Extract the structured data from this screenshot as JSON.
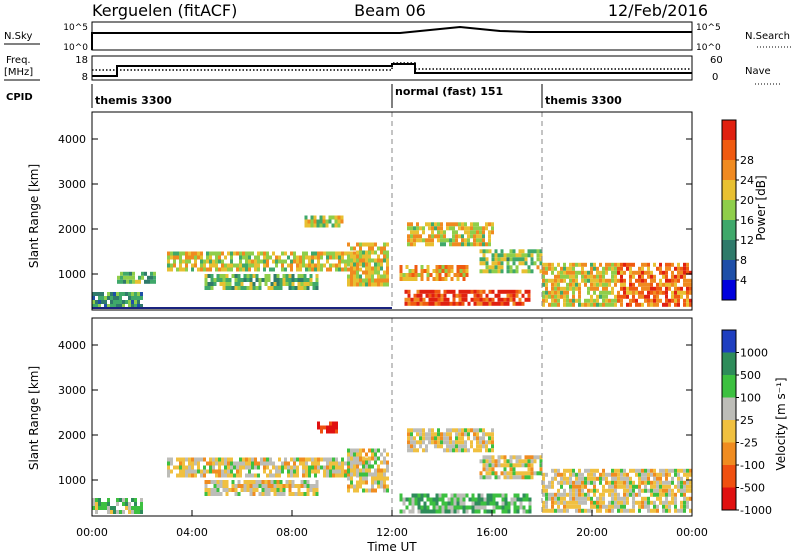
{
  "header": {
    "station": "Kerguelen (fitACF)",
    "beam": "Beam 06",
    "date": "12/Feb/2016"
  },
  "top_panels": {
    "nsky_label": "N.Sky",
    "nsky_ticks": [
      "10^5",
      "10^0"
    ],
    "nsearch_label": "N.Search",
    "nsearch_ticks": [
      "10^5",
      "10^0"
    ],
    "freq_label_1": "Freq.",
    "freq_label_2": "[MHz]",
    "freq_ticks": [
      "18",
      "8"
    ],
    "nave_label": "Nave",
    "nave_ticks": [
      "60",
      "0"
    ],
    "cpid_label": "CPID",
    "cpid_segments": [
      {
        "label": "themis 3300",
        "start_hour": 0
      },
      {
        "label": "normal (fast) 151",
        "start_hour": 12
      },
      {
        "label": "themis 3300",
        "start_hour": 18
      }
    ]
  },
  "chart_data": [
    {
      "type": "heatmap",
      "title": "",
      "ylabel": "Slant Range [km]",
      "xlabel": "",
      "yticks": [
        "1000",
        "2000",
        "3000",
        "4000"
      ],
      "ylim": [
        200,
        4600
      ],
      "xlim": [
        0,
        24
      ],
      "colorbar_label": "Power [dB]",
      "colorbar_ticks": [
        "4",
        "8",
        "12",
        "16",
        "20",
        "24",
        "28"
      ],
      "colorbar_colors": [
        "#0000dd",
        "#1e4fa8",
        "#2f7a6a",
        "#3fa86a",
        "#8fce4a",
        "#e8c032",
        "#f08a20",
        "#f05a10",
        "#e02010"
      ],
      "mode_change_hours": [
        12,
        18
      ],
      "regions": [
        {
          "h0": 0.0,
          "h1": 2.0,
          "r0": 280,
          "r1": 600,
          "level": 0.35
        },
        {
          "h0": 1.0,
          "h1": 2.5,
          "r0": 850,
          "r1": 1050,
          "level": 0.4
        },
        {
          "h0": 3.0,
          "h1": 11.0,
          "r0": 1100,
          "r1": 1500,
          "level": 0.55
        },
        {
          "h0": 4.5,
          "h1": 9.0,
          "r0": 700,
          "r1": 1000,
          "level": 0.45
        },
        {
          "h0": 8.5,
          "h1": 10.0,
          "r0": 2050,
          "r1": 2300,
          "level": 0.55
        },
        {
          "h0": 10.2,
          "h1": 11.8,
          "r0": 800,
          "r1": 1700,
          "level": 0.6
        },
        {
          "h0": 12.3,
          "h1": 15.0,
          "r0": 900,
          "r1": 1200,
          "level": 0.7
        },
        {
          "h0": 12.5,
          "h1": 17.5,
          "r0": 300,
          "r1": 650,
          "level": 0.9
        },
        {
          "h0": 12.6,
          "h1": 16.0,
          "r0": 1650,
          "r1": 2150,
          "level": 0.6
        },
        {
          "h0": 15.5,
          "h1": 18.0,
          "r0": 1050,
          "r1": 1550,
          "level": 0.5
        },
        {
          "h0": 18.0,
          "h1": 21.0,
          "r0": 300,
          "r1": 1250,
          "level": 0.6
        },
        {
          "h0": 21.0,
          "h1": 24.0,
          "r0": 300,
          "r1": 1250,
          "level": 0.8
        }
      ]
    },
    {
      "type": "heatmap",
      "title": "",
      "ylabel": "Slant Range [km]",
      "xlabel": "Time UT",
      "xticks": [
        "00:00",
        "04:00",
        "08:00",
        "12:00",
        "16:00",
        "20:00",
        "00:00"
      ],
      "yticks": [
        "1000",
        "2000",
        "3000",
        "4000"
      ],
      "ylim": [
        200,
        4600
      ],
      "xlim": [
        0,
        24
      ],
      "colorbar_label": "Velocity [m s⁻¹]",
      "colorbar_ticks": [
        "1000",
        "500",
        "100",
        "25",
        "-25",
        "-100",
        "-500",
        "-1000"
      ],
      "colorbar_colors": [
        "#1f3fc0",
        "#2e8c5a",
        "#3cc040",
        "#bdbdb8",
        "#f0c040",
        "#f08c20",
        "#f05010",
        "#e01010"
      ],
      "mode_change_hours": [
        12,
        18
      ],
      "regions": [
        {
          "h0": 0.0,
          "h1": 2.0,
          "r0": 280,
          "r1": 600,
          "level": 0.35
        },
        {
          "h0": 3.0,
          "h1": 11.0,
          "r0": 1100,
          "r1": 1500,
          "level": 0.5
        },
        {
          "h0": 4.5,
          "h1": 9.0,
          "r0": 700,
          "r1": 1000,
          "level": 0.5
        },
        {
          "h0": 9.0,
          "h1": 9.8,
          "r0": 2050,
          "r1": 2300,
          "level": 0.95
        },
        {
          "h0": 10.2,
          "h1": 11.8,
          "r0": 800,
          "r1": 1700,
          "level": 0.5
        },
        {
          "h0": 12.3,
          "h1": 17.5,
          "r0": 300,
          "r1": 700,
          "level": 0.3
        },
        {
          "h0": 12.6,
          "h1": 16.0,
          "r0": 1650,
          "r1": 2150,
          "level": 0.5
        },
        {
          "h0": 15.5,
          "h1": 18.0,
          "r0": 1050,
          "r1": 1550,
          "level": 0.5
        },
        {
          "h0": 18.0,
          "h1": 24.0,
          "r0": 300,
          "r1": 1250,
          "level": 0.5
        }
      ]
    }
  ]
}
